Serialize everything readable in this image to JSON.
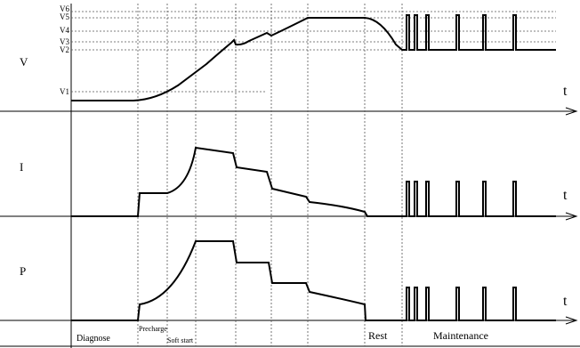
{
  "panels": [
    {
      "label": "V",
      "axis": "t"
    },
    {
      "label": "I",
      "axis": "t"
    },
    {
      "label": "P",
      "axis": "t"
    }
  ],
  "voltage_levels": [
    "V1",
    "V2",
    "V3",
    "V4",
    "V5",
    "V6"
  ],
  "phases": [
    "Diagnose",
    "Precharge",
    "Soft start",
    "Rest",
    "Maintenance"
  ]
}
